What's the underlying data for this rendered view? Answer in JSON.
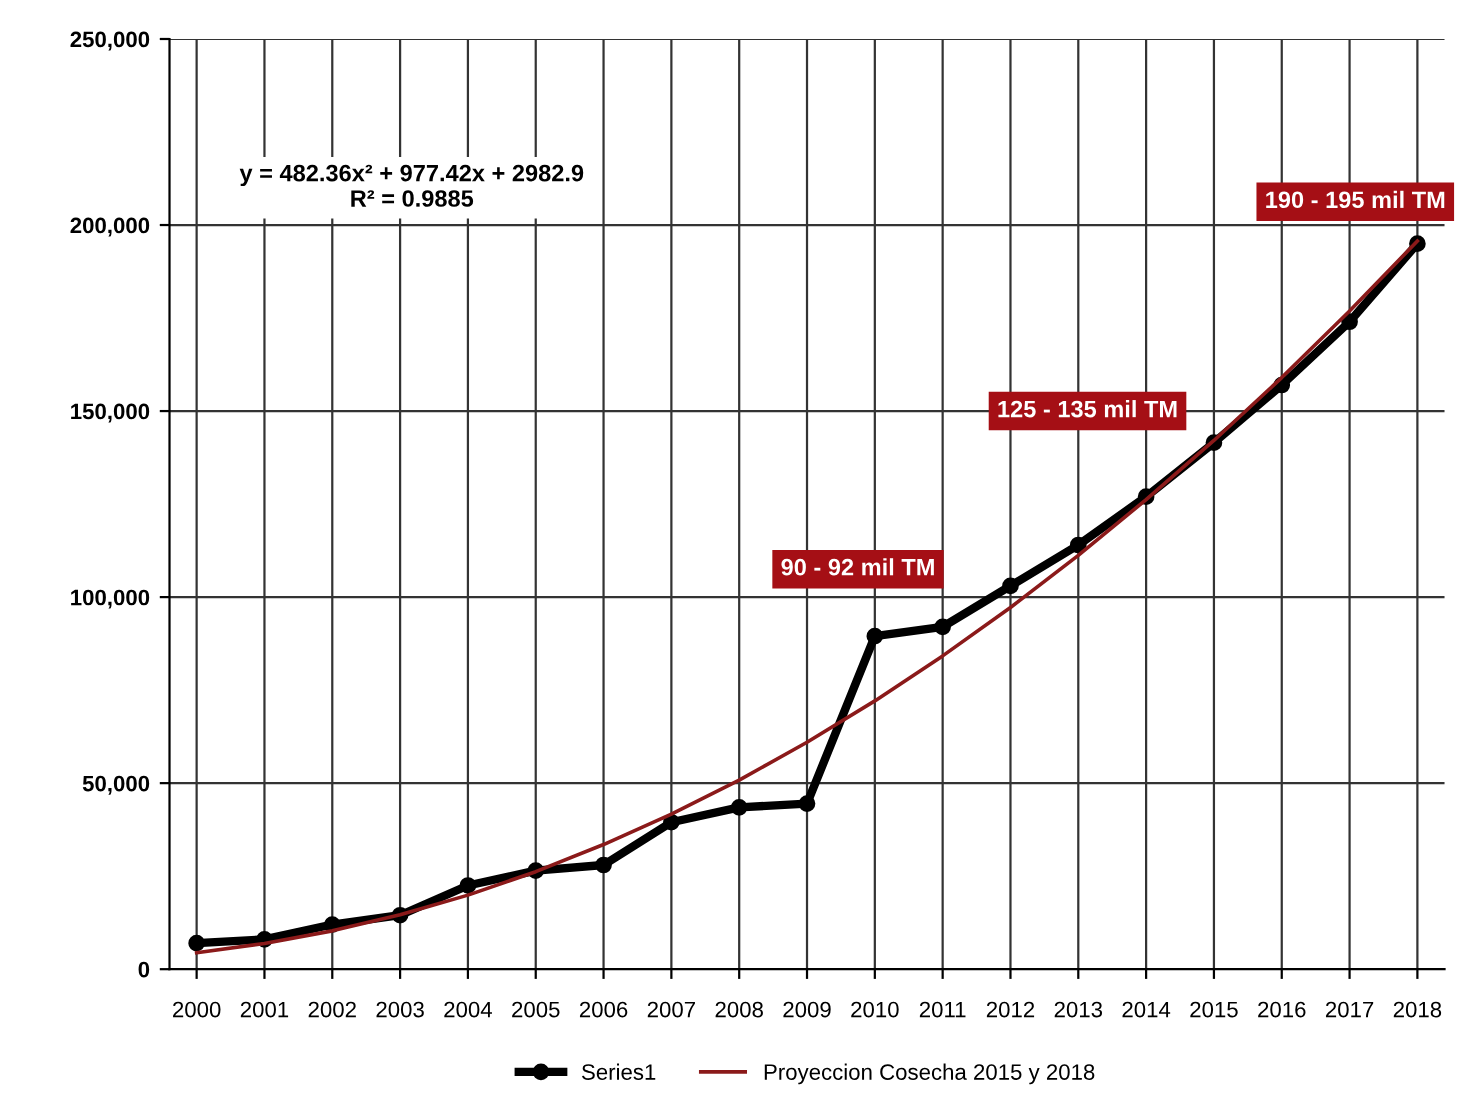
{
  "chart_data": {
    "type": "line",
    "categories": [
      "2000",
      "2001",
      "2002",
      "2003",
      "2004",
      "2005",
      "2006",
      "2007",
      "2008",
      "2009",
      "2010",
      "2011",
      "2012",
      "2013",
      "2014",
      "2015",
      "2016",
      "2017",
      "2018"
    ],
    "series": [
      {
        "name": "Series1",
        "color": "#000000",
        "marker": "circle",
        "values": [
          7000,
          8000,
          12000,
          14500,
          22500,
          26500,
          28000,
          39500,
          43500,
          44500,
          89500,
          92000,
          103000,
          114000,
          127000,
          141500,
          157000,
          174000,
          195000
        ]
      },
      {
        "name": "Proyeccion Cosecha 2015 y 2018",
        "color": "#8b1a1a",
        "marker": "none",
        "values": [
          4400,
          6900,
          10300,
          14600,
          19900,
          26200,
          33500,
          41700,
          50800,
          61000,
          72100,
          84200,
          97200,
          111200,
          126200,
          142100,
          159000,
          176900,
          195700
        ]
      }
    ],
    "ylim": [
      0,
      250000
    ],
    "yticks": [
      {
        "value": 0,
        "label": "0"
      },
      {
        "value": 50000,
        "label": "50,000"
      },
      {
        "value": 100000,
        "label": "100,000"
      },
      {
        "value": 150000,
        "label": "150,000"
      },
      {
        "value": 200000,
        "label": "200,000"
      },
      {
        "value": 250000,
        "label": "250,000"
      }
    ],
    "grid": true,
    "legend": "bottom",
    "annotations": [
      "y = 482.36x² + 977.42x + 2982.9\nR² = 0.9885",
      "90 - 92 mil TM",
      "125 - 135 mil TM",
      "190 - 195 mil TM"
    ]
  }
}
